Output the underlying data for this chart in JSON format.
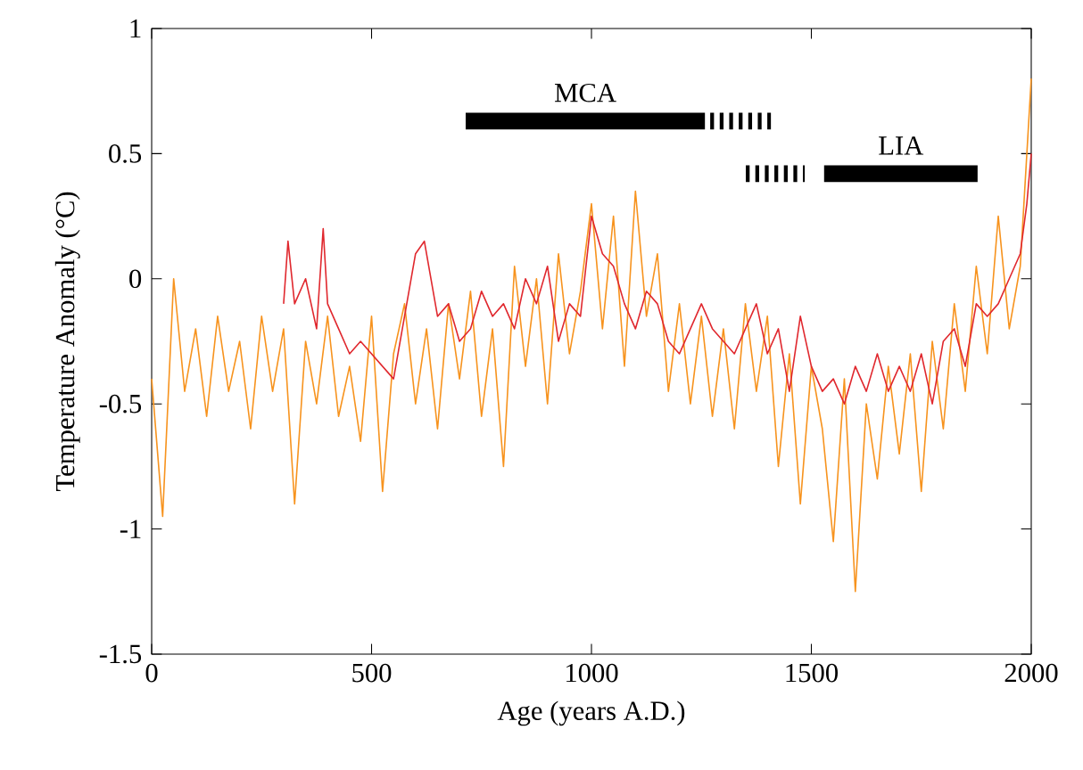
{
  "chart_data": {
    "type": "line",
    "xlabel": "Age (years A.D.)",
    "ylabel": "Temperature Anomaly (°C)",
    "xlim": [
      0,
      2000
    ],
    "ylim": [
      -1.5,
      1
    ],
    "xticks": [
      0,
      500,
      1000,
      1500,
      2000
    ],
    "yticks": [
      {
        "value": -1.5,
        "label": "-1.5"
      },
      {
        "value": -1,
        "label": "-1"
      },
      {
        "value": -0.5,
        "label": "-0.5"
      },
      {
        "value": 0,
        "label": "0"
      },
      {
        "value": 0.5,
        "label": "0.5"
      },
      {
        "value": 1,
        "label": "1"
      }
    ],
    "grid": false,
    "legend": false,
    "series": [
      {
        "color": "#f7931e",
        "x": [
          0,
          25,
          50,
          75,
          100,
          125,
          150,
          175,
          200,
          225,
          250,
          275,
          300,
          325,
          350,
          375,
          400,
          425,
          450,
          475,
          500,
          525,
          550,
          575,
          600,
          625,
          650,
          675,
          700,
          725,
          750,
          775,
          800,
          825,
          850,
          875,
          900,
          925,
          950,
          975,
          1000,
          1025,
          1050,
          1075,
          1100,
          1125,
          1150,
          1175,
          1200,
          1225,
          1250,
          1275,
          1300,
          1325,
          1350,
          1375,
          1400,
          1425,
          1450,
          1475,
          1500,
          1525,
          1550,
          1575,
          1600,
          1625,
          1650,
          1675,
          1700,
          1725,
          1750,
          1775,
          1800,
          1825,
          1850,
          1875,
          1900,
          1925,
          1950,
          1975,
          2000
        ],
        "values": [
          -0.4,
          -0.95,
          0.0,
          -0.45,
          -0.2,
          -0.55,
          -0.15,
          -0.45,
          -0.25,
          -0.6,
          -0.15,
          -0.45,
          -0.2,
          -0.9,
          -0.25,
          -0.5,
          -0.15,
          -0.55,
          -0.35,
          -0.65,
          -0.15,
          -0.85,
          -0.3,
          -0.1,
          -0.5,
          -0.2,
          -0.6,
          -0.1,
          -0.4,
          -0.05,
          -0.55,
          -0.2,
          -0.75,
          0.05,
          -0.35,
          0.0,
          -0.5,
          0.1,
          -0.3,
          -0.05,
          0.3,
          -0.2,
          0.25,
          -0.35,
          0.35,
          -0.15,
          0.1,
          -0.45,
          -0.1,
          -0.5,
          -0.15,
          -0.55,
          -0.2,
          -0.6,
          -0.1,
          -0.45,
          -0.15,
          -0.75,
          -0.3,
          -0.9,
          -0.35,
          -0.6,
          -1.05,
          -0.4,
          -1.25,
          -0.5,
          -0.8,
          -0.35,
          -0.7,
          -0.3,
          -0.85,
          -0.25,
          -0.6,
          -0.1,
          -0.45,
          0.05,
          -0.3,
          0.25,
          -0.2,
          0.05,
          0.8
        ]
      },
      {
        "color": "#e0282e",
        "x": [
          300,
          310,
          325,
          350,
          375,
          390,
          400,
          425,
          450,
          475,
          500,
          525,
          550,
          575,
          600,
          620,
          650,
          675,
          700,
          725,
          750,
          775,
          800,
          825,
          850,
          875,
          900,
          925,
          950,
          975,
          1000,
          1025,
          1050,
          1075,
          1100,
          1125,
          1150,
          1175,
          1200,
          1225,
          1250,
          1275,
          1300,
          1325,
          1350,
          1375,
          1400,
          1425,
          1450,
          1475,
          1500,
          1525,
          1550,
          1575,
          1600,
          1625,
          1650,
          1675,
          1700,
          1725,
          1750,
          1775,
          1800,
          1825,
          1850,
          1875,
          1900,
          1925,
          1950,
          1975,
          1990,
          2000
        ],
        "values": [
          -0.1,
          0.15,
          -0.1,
          0.0,
          -0.2,
          0.2,
          -0.1,
          -0.2,
          -0.3,
          -0.25,
          -0.3,
          -0.35,
          -0.4,
          -0.15,
          0.1,
          0.15,
          -0.15,
          -0.1,
          -0.25,
          -0.2,
          -0.05,
          -0.15,
          -0.1,
          -0.2,
          0.0,
          -0.1,
          0.05,
          -0.25,
          -0.1,
          -0.15,
          0.25,
          0.1,
          0.05,
          -0.1,
          -0.2,
          -0.05,
          -0.1,
          -0.25,
          -0.3,
          -0.2,
          -0.1,
          -0.2,
          -0.25,
          -0.3,
          -0.2,
          -0.1,
          -0.3,
          -0.2,
          -0.45,
          -0.15,
          -0.35,
          -0.45,
          -0.4,
          -0.5,
          -0.35,
          -0.45,
          -0.3,
          -0.45,
          -0.35,
          -0.45,
          -0.3,
          -0.5,
          -0.25,
          -0.2,
          -0.35,
          -0.1,
          -0.15,
          -0.1,
          0.0,
          0.1,
          0.3,
          0.5
        ]
      },
      {
        "name": "MCA",
        "color": "#000000",
        "line_style": "solid",
        "x": [
          714,
          1258
        ],
        "values": [
          0.63,
          0.63
        ]
      },
      {
        "color": "#000000",
        "line_style": "dashed",
        "x": [
          1270,
          1408
        ],
        "values": [
          0.63,
          0.63
        ]
      },
      {
        "color": "#000000",
        "line_style": "dashed",
        "x": [
          1351,
          1485
        ],
        "values": [
          0.42,
          0.42
        ]
      },
      {
        "name": "LIA",
        "color": "#000000",
        "line_style": "solid",
        "x": [
          1529,
          1878
        ],
        "values": [
          0.42,
          0.42
        ]
      }
    ]
  }
}
